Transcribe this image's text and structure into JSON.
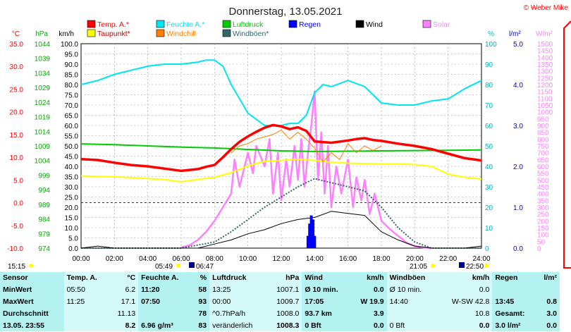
{
  "header": {
    "title": "Donnerstag, 13.05.2021",
    "credit": "© Weber Mike",
    "left_time": "15:15"
  },
  "axes": {
    "left_units": [
      "°C",
      "hPa",
      "km/h"
    ],
    "right_units": [
      "%",
      "l/m²",
      "W/m²"
    ],
    "temp_ticks": [
      "35.0",
      "30.0",
      "25.0",
      "20.0",
      "15.0",
      "10.0",
      "5.0",
      "0.0",
      "-5.0",
      "-10.0"
    ],
    "pressure_ticks": [
      "1044",
      "1039",
      "1034",
      "1029",
      "1024",
      "1019",
      "1014",
      "1009",
      "1004",
      "999",
      "994",
      "989",
      "984",
      "979",
      "974"
    ],
    "wind_ticks": [
      "100.0",
      "95.0",
      "90.0",
      "85.0",
      "80.0",
      "75.0",
      "70.0",
      "65.0",
      "60.0",
      "55.0",
      "50.0",
      "45.0",
      "40.0",
      "35.0",
      "30.0",
      "25.0",
      "20.0",
      "15.0",
      "10.0",
      "5.0",
      "0.0"
    ],
    "humidity_ticks": [
      "100",
      "90",
      "80",
      "70",
      "60",
      "50",
      "40",
      "30",
      "20",
      "10",
      "0"
    ],
    "rain_ticks": [
      "5.0",
      "4.0",
      "3.0",
      "2.0",
      "1.0",
      "0.0"
    ],
    "solar_ticks": [
      "1500",
      "1450",
      "1400",
      "1350",
      "1300",
      "1250",
      "1200",
      "1150",
      "1100",
      "1050",
      "1000",
      "950",
      "900",
      "850",
      "800",
      "750",
      "700",
      "650",
      "600",
      "550",
      "500",
      "450",
      "400",
      "350",
      "300",
      "250",
      "200",
      "150",
      "100",
      "50",
      "0"
    ],
    "time_ticks": [
      "00:00",
      "02:00",
      "04:00",
      "06:00",
      "08:00",
      "10:00",
      "12:00",
      "14:00",
      "16:00",
      "18:00",
      "20:00",
      "22:00",
      "24:00"
    ],
    "sunrise": "05:49",
    "moonrise": "06:47",
    "sunset": "21:05",
    "moonset": "22:50"
  },
  "legend": [
    {
      "label": "Temp. A.*",
      "color": "#ff0000"
    },
    {
      "label": "Feuchte A.*",
      "color": "#00e5ee"
    },
    {
      "label": "Luftdruck",
      "color": "#00cc00"
    },
    {
      "label": "Regen",
      "color": "#0000ff"
    },
    {
      "label": "Wind",
      "color": "#000000"
    },
    {
      "label": "Solar",
      "color": "#ff80ff"
    },
    {
      "label": "Taupunkt*",
      "color": "#ffff00"
    },
    {
      "label": "Windchill",
      "color": "#ff8000"
    },
    {
      "label": "Windböen*",
      "color": "#336666"
    }
  ],
  "chart_data": {
    "type": "line",
    "title": "Donnerstag, 13.05.2021",
    "x_unit": "hours",
    "xlim": [
      0,
      24
    ],
    "series": [
      {
        "name": "Temp. A.*",
        "axis": "temp",
        "color": "#ff0000",
        "x": [
          0,
          1,
          2,
          3,
          4,
          5,
          6,
          7,
          7.5,
          8,
          8.5,
          9,
          9.5,
          10,
          10.5,
          11,
          11.5,
          12,
          12.5,
          13,
          13.5,
          14,
          15,
          16,
          16.5,
          17,
          17.5,
          18,
          19,
          20,
          21,
          22,
          23,
          24
        ],
        "y": [
          9.6,
          9.4,
          8.8,
          8.3,
          8.0,
          7.5,
          7.0,
          7.4,
          7.9,
          8.3,
          10.0,
          11.8,
          13.4,
          14.6,
          15.6,
          16.5,
          17.1,
          16.8,
          16.2,
          16.6,
          15.8,
          13.5,
          13.2,
          13.7,
          14.0,
          14.2,
          13.8,
          13.6,
          13.0,
          12.5,
          11.8,
          10.8,
          9.8,
          9.3
        ]
      },
      {
        "name": "Feuchte A.*",
        "axis": "humidity",
        "color": "#00e5ee",
        "x": [
          0,
          1,
          2,
          3,
          4,
          5,
          6,
          7,
          7.5,
          8,
          8.5,
          9,
          10,
          11,
          12,
          12.5,
          13,
          13.5,
          14,
          14.5,
          15,
          16,
          17,
          18,
          19,
          20,
          21,
          22,
          23,
          24
        ],
        "y": [
          80,
          82,
          85,
          87,
          89,
          90,
          90,
          91,
          92,
          92,
          89,
          80,
          66,
          60,
          60,
          61,
          61,
          65,
          76,
          80,
          79,
          82,
          79,
          71,
          70,
          70,
          72,
          73,
          78,
          82
        ]
      },
      {
        "name": "Luftdruck",
        "axis": "pressure",
        "color": "#00cc00",
        "x": [
          0,
          2,
          4,
          6,
          8,
          10,
          12,
          14,
          16,
          18,
          20,
          22,
          24
        ],
        "y": [
          1009.7,
          1009.4,
          1009.0,
          1008.6,
          1008.3,
          1007.8,
          1007.3,
          1007.1,
          1007.2,
          1007.3,
          1007.4,
          1007.5,
          1007.6
        ]
      },
      {
        "name": "Taupunkt*",
        "axis": "temp",
        "color": "#ffff00",
        "x": [
          0,
          2,
          4,
          5,
          6,
          8,
          9,
          10,
          11,
          12,
          13,
          14,
          15,
          16,
          17,
          18,
          19,
          20,
          21,
          22,
          23,
          24
        ],
        "y": [
          5.9,
          5.7,
          5.3,
          5.1,
          4.6,
          5.6,
          6.6,
          8.1,
          9.1,
          9.3,
          9.6,
          9.3,
          8.9,
          8.7,
          8.6,
          8.5,
          8.5,
          8.4,
          8.0,
          6.3,
          5.6,
          5.2
        ]
      },
      {
        "name": "Windchill",
        "axis": "temp",
        "color": "#ff8000",
        "x": [
          9,
          9.5,
          10,
          10.5,
          11,
          11.5,
          12,
          12.5,
          13,
          13.5,
          14,
          14.5,
          15,
          15.5,
          16,
          16.5,
          17,
          17.5,
          18
        ],
        "y": [
          11.0,
          12.5,
          13.0,
          14.0,
          14.5,
          15.0,
          16.0,
          14.0,
          15.5,
          14.0,
          12.0,
          9.0,
          11.0,
          9.5,
          13.0,
          11.0,
          12.5,
          11.5,
          12.5
        ]
      },
      {
        "name": "Regen",
        "axis": "rain",
        "color": "#0000ff",
        "x": [
          13.6,
          13.7,
          13.8,
          13.9,
          14.0
        ],
        "y": [
          0.3,
          0.6,
          0.8,
          0.7,
          0.3
        ]
      },
      {
        "name": "Wind",
        "axis": "wind",
        "color": "#000000",
        "x": [
          0,
          1,
          2,
          3,
          4,
          5,
          6,
          7,
          8,
          9,
          10,
          11,
          12,
          13,
          14,
          15,
          16,
          17,
          18,
          19,
          20,
          21,
          22,
          23,
          24
        ],
        "y": [
          0,
          1,
          0,
          0,
          0,
          0,
          0,
          0,
          2,
          4,
          7,
          9,
          12,
          14,
          15,
          18,
          17,
          16,
          8,
          4,
          1,
          0,
          0,
          0,
          1
        ]
      },
      {
        "name": "Windböen*",
        "axis": "wind",
        "color": "#336666",
        "x": [
          0,
          2,
          4,
          6,
          8,
          9,
          10,
          11,
          12,
          13,
          14,
          15,
          16,
          17,
          18,
          19,
          20,
          21,
          22,
          23,
          24
        ],
        "y": [
          0,
          0,
          0,
          0,
          3,
          8,
          14,
          20,
          25,
          30,
          34,
          32,
          30,
          28,
          20,
          10,
          3,
          0,
          0,
          0,
          0
        ]
      },
      {
        "name": "Solar",
        "axis": "solar",
        "color": "#ff80ff",
        "x": [
          6,
          6.5,
          7,
          7.5,
          8,
          8.5,
          9,
          9.2,
          9.5,
          10,
          10.3,
          10.5,
          11,
          11.3,
          11.5,
          11.8,
          12,
          12.3,
          12.5,
          12.8,
          13,
          13.2,
          13.4,
          13.6,
          13.8,
          14,
          14.2,
          14.4,
          14.6,
          14.8,
          15,
          15.3,
          15.6,
          16,
          16.3,
          16.5,
          16.8,
          17,
          17.3,
          17.6,
          18,
          18.5,
          19,
          19.5,
          20,
          20.5,
          21
        ],
        "y": [
          5,
          20,
          60,
          120,
          200,
          300,
          400,
          650,
          450,
          700,
          550,
          750,
          600,
          800,
          400,
          700,
          350,
          650,
          450,
          750,
          500,
          800,
          450,
          700,
          900,
          1150,
          500,
          850,
          400,
          750,
          300,
          600,
          400,
          650,
          300,
          520,
          350,
          500,
          250,
          400,
          200,
          140,
          90,
          40,
          15,
          5,
          0
        ]
      }
    ],
    "axes_ranges": {
      "temp": [
        -10,
        35
      ],
      "pressure": [
        974,
        1044
      ],
      "wind": [
        0,
        100
      ],
      "humidity": [
        0,
        100
      ],
      "rain": [
        0,
        5
      ],
      "solar": [
        0,
        1500
      ]
    },
    "grid": true
  },
  "stats": {
    "headers": [
      "Sensor",
      "Temp. A.",
      "°C",
      "Feuchte A.",
      "%",
      "Luftdruck",
      "hPa",
      "Wind",
      "km/h",
      "Windböen",
      "km/h",
      "Regen",
      "l/m²"
    ],
    "rows": [
      [
        "MinWert",
        "05:50",
        "6.2",
        "11:20",
        "58",
        "13:25",
        "1007.1",
        "Ø 10 min.",
        "0.0",
        "Ø 10 min.",
        "0.0",
        "",
        ""
      ],
      [
        "MaxWert",
        "11:25",
        "17.1",
        "07:50",
        "93",
        "00:00",
        "1009.7",
        "17:05",
        "W 19.9",
        "14:40",
        "W-SW 42.8",
        "13:45",
        "0.8"
      ],
      [
        "Durchschnitt",
        "",
        "11.13",
        "",
        "78",
        "^0.7hPa/h",
        "1008.0",
        "93.7 km",
        "3.9",
        "",
        "10.8",
        "Gesamt:",
        "3.0"
      ],
      [
        "13.05. 23:55",
        "",
        "8.2",
        "6.96 g/m³",
        "83",
        "veränderlich",
        "1008.3",
        "0 Bft",
        "0.0",
        "0 Bft",
        "0.0",
        "3.0 l/m²",
        "0.0"
      ]
    ]
  }
}
